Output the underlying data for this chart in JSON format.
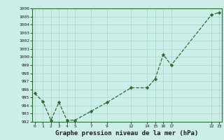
{
  "x_values": [
    0,
    1,
    2,
    3,
    4,
    5,
    7,
    9,
    12,
    14,
    15,
    16,
    17,
    22,
    23
  ],
  "y_values": [
    995.5,
    994.5,
    992.2,
    994.4,
    992.2,
    992.2,
    993.3,
    994.4,
    996.2,
    996.2,
    997.3,
    1000.3,
    999.0,
    1005.2,
    1005.5
  ],
  "x_ticks": [
    0,
    1,
    2,
    3,
    4,
    5,
    7,
    9,
    12,
    14,
    15,
    16,
    17,
    22,
    23
  ],
  "x_tick_labels": [
    "0",
    "1",
    "2",
    "3",
    "4",
    "5",
    "7",
    "9",
    "12",
    "14",
    "15",
    "16",
    "17",
    "22",
    "23"
  ],
  "y_min": 992,
  "y_max": 1006,
  "y_ticks": [
    992,
    993,
    994,
    995,
    996,
    997,
    998,
    999,
    1000,
    1001,
    1002,
    1003,
    1004,
    1005,
    1006
  ],
  "line_color": "#2d6a2d",
  "marker_color": "#2d6a2d",
  "bg_color": "#cceee8",
  "grid_color": "#aad4cc",
  "title": "Graphe pression niveau de la mer (hPa)",
  "title_fontsize": 6.5,
  "plot_bg": "#cceee8",
  "x_min": -0.3,
  "x_max": 23.3
}
